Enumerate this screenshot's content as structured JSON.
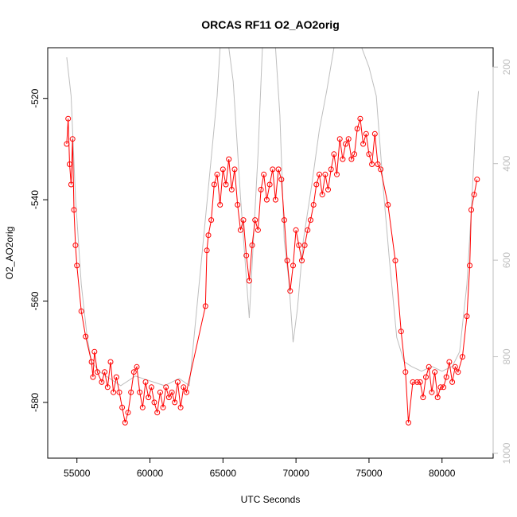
{
  "chart_data": {
    "type": "scatter",
    "title": "ORCAS RF11 O2_AO2orig",
    "xlabel": "UTC Seconds",
    "ylabel": "O2_AO2orig",
    "xlim": [
      53000,
      83500
    ],
    "ylim": [
      -591,
      -510
    ],
    "y2lim": [
      1010,
      160
    ],
    "x_ticks": [
      55000,
      60000,
      65000,
      70000,
      75000,
      80000
    ],
    "y_ticks": [
      -520,
      -540,
      -560,
      -580
    ],
    "y2_ticks": [
      200,
      400,
      600,
      800,
      1000
    ],
    "grid": false,
    "legend": "none",
    "colors": {
      "main": "#ff0000",
      "secondary": "#bebebe",
      "axis": "#000000",
      "secondary_axis": "#bebebe"
    },
    "series": [
      {
        "role": "main",
        "style": "line+points",
        "points": [
          [
            54300,
            -529
          ],
          [
            54400,
            -524
          ],
          [
            54500,
            -533
          ],
          [
            54600,
            -537
          ],
          [
            54700,
            -528
          ],
          [
            54800,
            -542
          ],
          [
            54900,
            -549
          ],
          [
            55000,
            -553
          ],
          [
            55300,
            -562
          ],
          [
            55600,
            -567
          ],
          [
            56000,
            -572
          ],
          [
            56100,
            -575
          ],
          [
            56200,
            -570
          ],
          [
            56400,
            -574
          ],
          [
            56700,
            -576
          ],
          [
            56900,
            -574
          ],
          [
            57100,
            -577
          ],
          [
            57300,
            -572
          ],
          [
            57500,
            -578
          ],
          [
            57700,
            -575
          ],
          [
            57900,
            -578
          ],
          [
            58100,
            -581
          ],
          [
            58300,
            -584
          ],
          [
            58500,
            -582
          ],
          [
            58700,
            -578
          ],
          [
            58900,
            -574
          ],
          [
            59100,
            -573
          ],
          [
            59300,
            -578
          ],
          [
            59500,
            -581
          ],
          [
            59700,
            -576
          ],
          [
            59900,
            -579
          ],
          [
            60100,
            -577
          ],
          [
            60300,
            -580
          ],
          [
            60500,
            -582
          ],
          [
            60700,
            -578
          ],
          [
            60900,
            -581
          ],
          [
            61100,
            -577
          ],
          [
            61300,
            -579
          ],
          [
            61500,
            -578
          ],
          [
            61700,
            -580
          ],
          [
            61900,
            -576
          ],
          [
            62100,
            -581
          ],
          [
            62300,
            -577
          ],
          [
            62500,
            -578
          ],
          [
            63800,
            -561
          ],
          [
            63900,
            -550
          ],
          [
            64000,
            -547
          ],
          [
            64200,
            -544
          ],
          [
            64400,
            -537
          ],
          [
            64600,
            -535
          ],
          [
            64800,
            -541
          ],
          [
            65000,
            -534
          ],
          [
            65200,
            -537
          ],
          [
            65400,
            -532
          ],
          [
            65600,
            -538
          ],
          [
            65800,
            -534
          ],
          [
            66000,
            -541
          ],
          [
            66200,
            -546
          ],
          [
            66400,
            -544
          ],
          [
            66600,
            -551
          ],
          [
            66800,
            -556
          ],
          [
            67000,
            -549
          ],
          [
            67200,
            -544
          ],
          [
            67400,
            -546
          ],
          [
            67600,
            -538
          ],
          [
            67800,
            -535
          ],
          [
            68000,
            -540
          ],
          [
            68200,
            -537
          ],
          [
            68400,
            -534
          ],
          [
            68600,
            -540
          ],
          [
            68800,
            -534
          ],
          [
            69000,
            -536
          ],
          [
            69200,
            -544
          ],
          [
            69400,
            -552
          ],
          [
            69600,
            -558
          ],
          [
            69800,
            -553
          ],
          [
            70000,
            -546
          ],
          [
            70200,
            -549
          ],
          [
            70400,
            -552
          ],
          [
            70600,
            -549
          ],
          [
            70800,
            -546
          ],
          [
            71000,
            -544
          ],
          [
            71200,
            -541
          ],
          [
            71400,
            -537
          ],
          [
            71600,
            -535
          ],
          [
            71800,
            -539
          ],
          [
            72000,
            -535
          ],
          [
            72200,
            -538
          ],
          [
            72400,
            -534
          ],
          [
            72600,
            -531
          ],
          [
            72800,
            -535
          ],
          [
            73000,
            -528
          ],
          [
            73200,
            -532
          ],
          [
            73400,
            -529
          ],
          [
            73600,
            -528
          ],
          [
            73800,
            -532
          ],
          [
            74000,
            -531
          ],
          [
            74200,
            -526
          ],
          [
            74400,
            -524
          ],
          [
            74600,
            -529
          ],
          [
            74800,
            -527
          ],
          [
            75000,
            -531
          ],
          [
            75200,
            -533
          ],
          [
            75400,
            -527
          ],
          [
            75600,
            -533
          ],
          [
            75800,
            -534
          ],
          [
            76300,
            -541
          ],
          [
            76800,
            -552
          ],
          [
            77200,
            -566
          ],
          [
            77500,
            -574
          ],
          [
            77700,
            -584
          ],
          [
            78000,
            -576
          ],
          [
            78300,
            -576
          ],
          [
            78500,
            -576
          ],
          [
            78700,
            -579
          ],
          [
            78900,
            -575
          ],
          [
            79100,
            -573
          ],
          [
            79300,
            -578
          ],
          [
            79500,
            -574
          ],
          [
            79700,
            -579
          ],
          [
            79900,
            -577
          ],
          [
            80100,
            -577
          ],
          [
            80300,
            -575
          ],
          [
            80500,
            -572
          ],
          [
            80700,
            -576
          ],
          [
            80900,
            -573
          ],
          [
            81100,
            -574
          ],
          [
            81400,
            -571
          ],
          [
            81700,
            -563
          ],
          [
            81900,
            -553
          ],
          [
            82000,
            -542
          ],
          [
            82200,
            -539
          ],
          [
            82400,
            -536
          ]
        ]
      },
      {
        "role": "secondary",
        "style": "line",
        "axis": "right",
        "points": [
          [
            54300,
            180
          ],
          [
            54600,
            260
          ],
          [
            54900,
            470
          ],
          [
            55300,
            650
          ],
          [
            55700,
            760
          ],
          [
            56000,
            810
          ],
          [
            56500,
            830
          ],
          [
            57000,
            840
          ],
          [
            58000,
            860
          ],
          [
            59000,
            840
          ],
          [
            60000,
            850
          ],
          [
            61000,
            860
          ],
          [
            62000,
            845
          ],
          [
            62700,
            860
          ],
          [
            64000,
            450
          ],
          [
            64600,
            260
          ],
          [
            64800,
            160
          ],
          [
            65400,
            160
          ],
          [
            65700,
            230
          ],
          [
            66200,
            470
          ],
          [
            66800,
            720
          ],
          [
            67400,
            380
          ],
          [
            67700,
            160
          ],
          [
            68600,
            160
          ],
          [
            68900,
            300
          ],
          [
            69200,
            560
          ],
          [
            69500,
            640
          ],
          [
            69800,
            770
          ],
          [
            70100,
            700
          ],
          [
            70500,
            560
          ],
          [
            71100,
            440
          ],
          [
            71600,
            330
          ],
          [
            72100,
            250
          ],
          [
            72600,
            160
          ],
          [
            73200,
            160
          ],
          [
            73800,
            160
          ],
          [
            74500,
            160
          ],
          [
            75000,
            200
          ],
          [
            75500,
            260
          ],
          [
            76000,
            460
          ],
          [
            76400,
            600
          ],
          [
            76900,
            760
          ],
          [
            77400,
            810
          ],
          [
            77900,
            820
          ],
          [
            78600,
            830
          ],
          [
            79300,
            820
          ],
          [
            80000,
            830
          ],
          [
            80700,
            820
          ],
          [
            81200,
            790
          ],
          [
            81700,
            650
          ],
          [
            82000,
            500
          ],
          [
            82300,
            320
          ],
          [
            82500,
            250
          ]
        ]
      }
    ]
  }
}
